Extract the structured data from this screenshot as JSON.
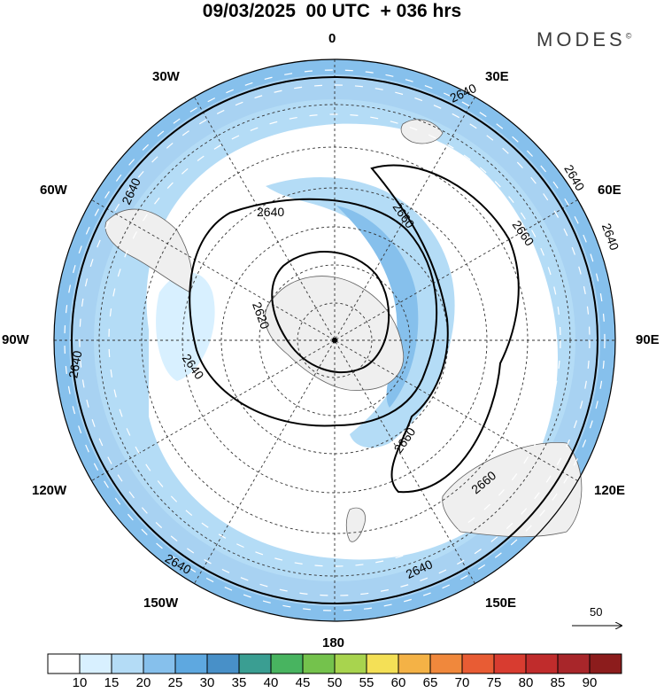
{
  "header": {
    "title": "09/03/2025  00 UTC  + 036 hrs",
    "brand": "MODES",
    "brand_mark": "©"
  },
  "map": {
    "projection": "south-polar-stereographic",
    "center_label": "south pole",
    "longitude_labels": [
      "0",
      "30E",
      "60E",
      "90E",
      "120E",
      "150E",
      "180",
      "150W",
      "120W",
      "90W",
      "60W",
      "30W"
    ],
    "latitude_circles_deg": [
      -80,
      -70,
      -60,
      -50,
      -40,
      -30,
      -20
    ],
    "contour_labels": [
      "2620",
      "2640",
      "2640",
      "2640",
      "2640",
      "2640",
      "2640",
      "2640",
      "2640",
      "2640",
      "2660",
      "2660",
      "2660",
      "2660"
    ],
    "shading_color_primary": "#b4dcf6",
    "shading_color_secondary": "#86c0ec",
    "land_color": "#efefef",
    "contour_color": "#000000",
    "vector_color": "#ffffff"
  },
  "vector_legend": {
    "value": "50"
  },
  "colorbar": {
    "labels": [
      "10",
      "15",
      "20",
      "25",
      "30",
      "35",
      "40",
      "45",
      "50",
      "55",
      "60",
      "65",
      "70",
      "75",
      "80",
      "85",
      "90"
    ],
    "colors": [
      "#ffffff",
      "#d8f0ff",
      "#b4dcf6",
      "#86c0ec",
      "#5ea8e0",
      "#4890c8",
      "#3a9e92",
      "#48b460",
      "#74c24c",
      "#a8d44e",
      "#f4e056",
      "#f4b246",
      "#f0883c",
      "#e85c34",
      "#d83c30",
      "#c02c2c",
      "#a8262a",
      "#8c1c1c"
    ]
  }
}
